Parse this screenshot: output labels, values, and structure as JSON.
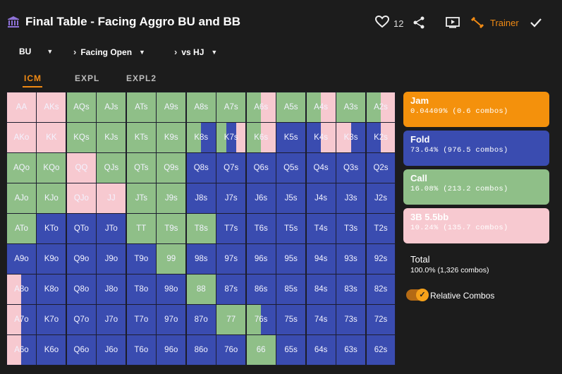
{
  "header": {
    "title": "Final Table - Facing Aggro BU and BB",
    "likes": "12",
    "trainer_label": "Trainer"
  },
  "crumbs": [
    "BU",
    "Facing Open",
    "vs HJ"
  ],
  "tabs": [
    "ICM",
    "EXPL",
    "EXPL2"
  ],
  "colors": {
    "jam": "#f4910c",
    "fold": "#3a4cb0",
    "call": "#8fbf88",
    "raise": "#f7c9d0",
    "accent": "#f08a14",
    "background": "#1c1c1c"
  },
  "actions": [
    {
      "name": "Jam",
      "value": "0.04409% (0.6 combos)"
    },
    {
      "name": "Fold",
      "value": "73.64% (976.5 combos)"
    },
    {
      "name": "Call",
      "value": "16.08% (213.2 combos)"
    },
    {
      "name": "3B 5.5bb",
      "value": "10.24% (135.7 combos)"
    }
  ],
  "total": {
    "label": "Total",
    "value": "100.0% (1,326 combos)"
  },
  "relative_toggle": {
    "label": "Relative Combos",
    "on": true
  },
  "hand_grid": {
    "rows": [
      [
        "AA",
        "AKs",
        "AQs",
        "AJs",
        "ATs",
        "A9s",
        "A8s",
        "A7s",
        "A6s",
        "A5s",
        "A4s",
        "A3s",
        "A2s"
      ],
      [
        "AKo",
        "KK",
        "KQs",
        "KJs",
        "KTs",
        "K9s",
        "K8s",
        "K7s",
        "K6s",
        "K5s",
        "K4s",
        "K3s",
        "K2s"
      ],
      [
        "AQo",
        "KQo",
        "QQ",
        "QJs",
        "QTs",
        "Q9s",
        "Q8s",
        "Q7s",
        "Q6s",
        "Q5s",
        "Q4s",
        "Q3s",
        "Q2s"
      ],
      [
        "AJo",
        "KJo",
        "QJo",
        "JJ",
        "JTs",
        "J9s",
        "J8s",
        "J7s",
        "J6s",
        "J5s",
        "J4s",
        "J3s",
        "J2s"
      ],
      [
        "ATo",
        "KTo",
        "QTo",
        "JTo",
        "TT",
        "T9s",
        "T8s",
        "T7s",
        "T6s",
        "T5s",
        "T4s",
        "T3s",
        "T2s"
      ],
      [
        "A9o",
        "K9o",
        "Q9o",
        "J9o",
        "T9o",
        "99",
        "98s",
        "97s",
        "96s",
        "95s",
        "94s",
        "93s",
        "92s"
      ],
      [
        "A8o",
        "K8o",
        "Q8o",
        "J8o",
        "T8o",
        "98o",
        "88",
        "87s",
        "86s",
        "85s",
        "84s",
        "83s",
        "82s"
      ],
      [
        "A7o",
        "K7o",
        "Q7o",
        "J7o",
        "T7o",
        "97o",
        "87o",
        "77",
        "76s",
        "75s",
        "74s",
        "73s",
        "72s"
      ],
      [
        "A6o",
        "K6o",
        "Q6o",
        "J6o",
        "T6o",
        "96o",
        "86o",
        "76o",
        "66",
        "65s",
        "64s",
        "63s",
        "62s"
      ]
    ],
    "strategy_codes": [
      [
        "R",
        "R",
        "C",
        "C",
        "C",
        "C",
        "C",
        "C",
        "CR",
        "C",
        "CR",
        "C",
        "CR"
      ],
      [
        "R",
        "R",
        "C",
        "C",
        "C",
        "C",
        "CF",
        "CFR",
        "CR",
        "F",
        "FR",
        "RF",
        "FR"
      ],
      [
        "C",
        "C",
        "R",
        "C",
        "C",
        "C",
        "F",
        "F",
        "F",
        "F",
        "F",
        "F",
        "F"
      ],
      [
        "C",
        "C",
        "R",
        "R",
        "C",
        "C",
        "F",
        "F",
        "F",
        "F",
        "F",
        "F",
        "F"
      ],
      [
        "C",
        "F",
        "F",
        "F",
        "C",
        "C",
        "C",
        "F",
        "F",
        "F",
        "F",
        "F",
        "F"
      ],
      [
        "F",
        "F",
        "F",
        "F",
        "F",
        "C",
        "F",
        "F",
        "F",
        "F",
        "F",
        "F",
        "F"
      ],
      [
        "RF",
        "F",
        "F",
        "F",
        "F",
        "F",
        "C",
        "F",
        "F",
        "F",
        "F",
        "F",
        "F"
      ],
      [
        "RF",
        "F",
        "F",
        "F",
        "F",
        "F",
        "F",
        "C",
        "CF",
        "F",
        "F",
        "F",
        "F"
      ],
      [
        "RF",
        "F",
        "F",
        "F",
        "F",
        "F",
        "F",
        "F",
        "C",
        "F",
        "F",
        "F",
        "F"
      ]
    ]
  }
}
